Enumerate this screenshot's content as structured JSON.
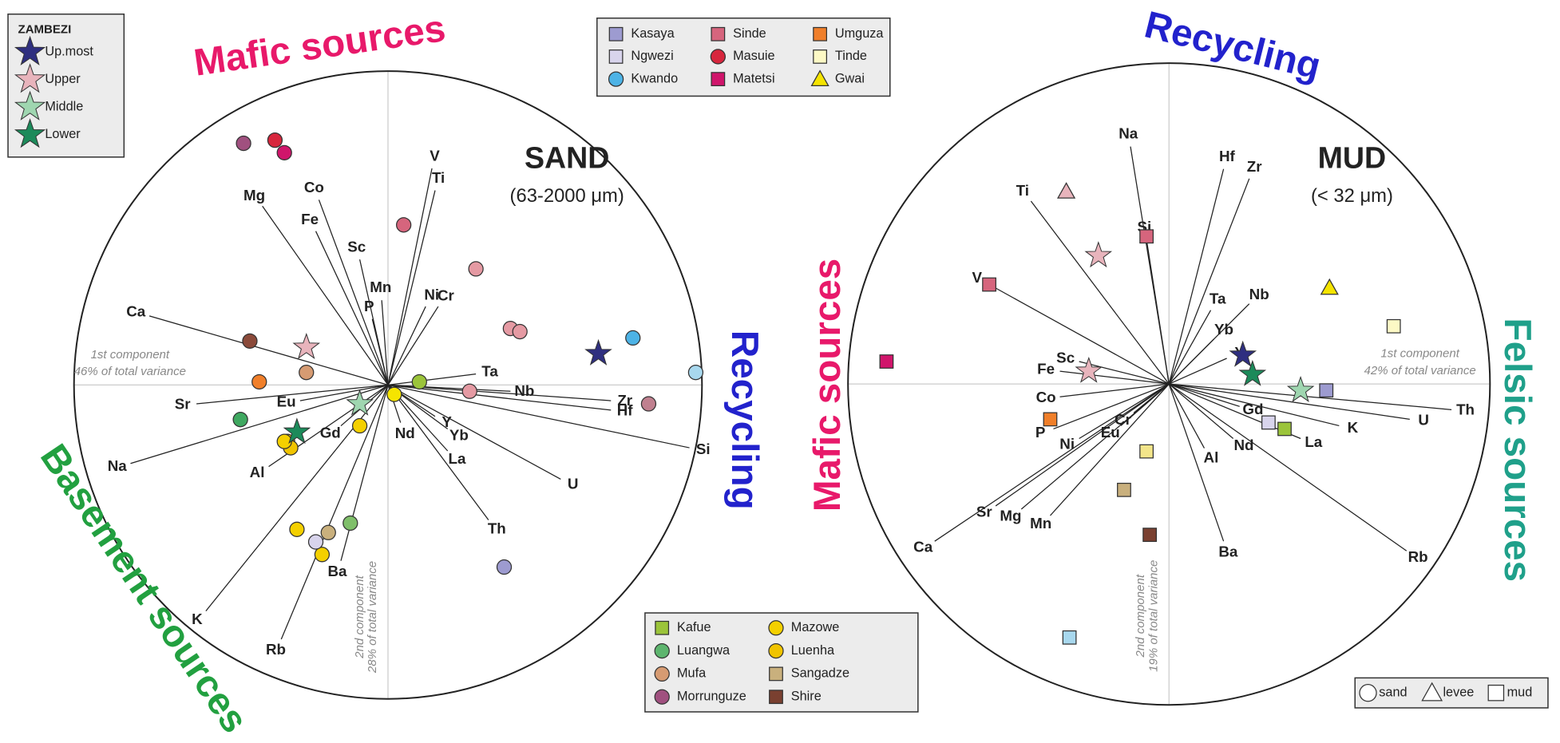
{
  "legends": {
    "zambezi": {
      "title": "ZAMBEZI",
      "items": [
        {
          "label": "Up.most",
          "color": "#2f2f80",
          "shape": "star"
        },
        {
          "label": "Upper",
          "color": "#e8b4bc",
          "shape": "star"
        },
        {
          "label": "Middle",
          "color": "#9fd6b0",
          "shape": "star"
        },
        {
          "label": "Lower",
          "color": "#1c8a5a",
          "shape": "star"
        }
      ]
    },
    "sources": {
      "items": [
        {
          "label": "Kasaya",
          "color": "#9d9bd0",
          "shape": "square"
        },
        {
          "label": "Ngwezi",
          "color": "#d8d4ec",
          "shape": "square"
        },
        {
          "label": "Kwando",
          "color": "#4db3e6",
          "shape": "circle"
        },
        {
          "label": "Sinde",
          "color": "#d6657d",
          "shape": "square"
        },
        {
          "label": "Masuie",
          "color": "#d7263d",
          "shape": "circle"
        },
        {
          "label": "Matetsi",
          "color": "#d0156b",
          "shape": "square"
        },
        {
          "label": "Umguza",
          "color": "#f07f2a",
          "shape": "square"
        },
        {
          "label": "Tinde",
          "color": "#fdf9c5",
          "shape": "square"
        },
        {
          "label": "Gwai",
          "color": "#f5e400",
          "shape": "triangle"
        }
      ]
    },
    "tributaries": {
      "items": [
        {
          "label": "Kafue",
          "color": "#9bc43a",
          "shape": "square"
        },
        {
          "label": "Luangwa",
          "color": "#5db56e",
          "shape": "circle"
        },
        {
          "label": "Mufa",
          "color": "#d69b72",
          "shape": "circle"
        },
        {
          "label": "Morrunguze",
          "color": "#a0507f",
          "shape": "circle"
        },
        {
          "label": "Mazowe",
          "color": "#f4d000",
          "shape": "circle"
        },
        {
          "label": "Luenha",
          "color": "#f0c400",
          "shape": "circle"
        },
        {
          "label": "Sangadze",
          "color": "#c9b07d",
          "shape": "square"
        },
        {
          "label": "Shire",
          "color": "#7a4030",
          "shape": "square"
        }
      ]
    },
    "shapes": {
      "items": [
        {
          "label": "sand",
          "shape": "circle"
        },
        {
          "label": "levee",
          "shape": "triangle"
        },
        {
          "label": "mud",
          "shape": "square"
        }
      ]
    }
  },
  "chart_data": [
    {
      "type": "biplot",
      "title": "SAND",
      "subtitle": "(63-2000 μm)",
      "x_label": [
        "1st component",
        "46% of total variance"
      ],
      "y_label": [
        "2nd component",
        "28% of total variance"
      ],
      "xlim": [
        -1,
        1
      ],
      "ylim": [
        -1,
        1
      ],
      "annotations": [
        {
          "text": "Mafic sources",
          "color": "#e8196a"
        },
        {
          "text": "Recycling",
          "color": "#2222cc"
        },
        {
          "text": "Basement sources",
          "color": "#22a040"
        }
      ],
      "loadings": {
        "names": [
          "V",
          "Ti",
          "Mg",
          "Co",
          "Fe",
          "Sc",
          "Mn",
          "P",
          "Ni",
          "Cr",
          "Ca",
          "Ta",
          "Sr",
          "Eu",
          "Gd",
          "Na",
          "Al",
          "K",
          "Rb",
          "Ba",
          "Nd",
          "Y",
          "Yb",
          "La",
          "Th",
          "U",
          "Si",
          "Hf",
          "Zr",
          "Nb"
        ],
        "x": [
          0.14,
          0.15,
          -0.4,
          -0.22,
          -0.23,
          -0.09,
          -0.02,
          -0.05,
          0.12,
          0.16,
          -0.76,
          0.28,
          -0.61,
          -0.28,
          -0.15,
          -0.82,
          -0.38,
          -0.58,
          -0.34,
          -0.15,
          0.04,
          0.15,
          0.19,
          0.19,
          0.32,
          0.55,
          0.96,
          0.71,
          0.71,
          0.39
        ],
        "y": [
          0.69,
          0.62,
          0.57,
          0.59,
          0.49,
          0.4,
          0.27,
          0.21,
          0.25,
          0.25,
          0.22,
          0.035,
          -0.06,
          -0.05,
          -0.13,
          -0.25,
          -0.26,
          -0.72,
          -0.81,
          -0.56,
          -0.12,
          -0.1,
          -0.14,
          -0.21,
          -0.43,
          -0.3,
          -0.2,
          -0.08,
          -0.05,
          -0.02
        ]
      },
      "samples": {
        "x": [
          -0.46,
          -0.36,
          -0.33,
          0.05,
          0.28,
          0.39,
          0.42,
          0.26,
          0.83,
          0.37,
          0.78,
          0.98,
          0.67,
          0.1,
          0.02,
          -0.09,
          -0.26,
          -0.44,
          -0.41,
          -0.26,
          -0.47,
          -0.32,
          -0.31,
          -0.33,
          -0.29,
          -0.09,
          -0.29,
          -0.21,
          -0.19,
          -0.23,
          -0.12
        ],
        "y": [
          0.77,
          0.78,
          0.74,
          0.51,
          0.37,
          0.18,
          0.17,
          -0.02,
          -0.06,
          -0.58,
          0.15,
          0.04,
          0.1,
          0.01,
          -0.03,
          -0.06,
          0.12,
          0.14,
          0.01,
          0.04,
          -0.11,
          -0.18,
          -0.2,
          -0.18,
          -0.15,
          -0.13,
          -0.46,
          -0.54,
          -0.47,
          -0.5,
          -0.44
        ],
        "colors": [
          "#a0507f",
          "#d7263d",
          "#d0156b",
          "#d6657d",
          "#e59aa3",
          "#e59aa3",
          "#e59aa3",
          "#e59aa3",
          "#c0808f",
          "#9d9bd0",
          "#4db3e6",
          "#a8d8ee",
          "#2f2f80",
          "#9bc43a",
          "#f5e400",
          "#9fd6b0",
          "#e8b4bc",
          "#8b4a3a",
          "#f07f2a",
          "#d69b72",
          "#3fa860",
          "#f4d000",
          "#f0c400",
          "#f4d000",
          "#1c8a5a",
          "#f4d000",
          "#f4d000",
          "#f4d000",
          "#c9b07d",
          "#d8d4ec",
          "#7fbf6a"
        ],
        "shapes": [
          "circle",
          "circle",
          "circle",
          "circle",
          "circle",
          "circle",
          "circle",
          "circle",
          "circle",
          "circle",
          "circle",
          "circle",
          "star",
          "circle",
          "circle",
          "star",
          "star",
          "circle",
          "circle",
          "circle",
          "circle",
          "circle",
          "circle",
          "circle",
          "star",
          "circle",
          "circle",
          "circle",
          "circle",
          "circle",
          "circle"
        ]
      }
    },
    {
      "type": "biplot",
      "title": "MUD",
      "subtitle": "(< 32 μm)",
      "x_label": [
        "1st component",
        "42% of total variance"
      ],
      "y_label": [
        "2nd component",
        "19% of total variance"
      ],
      "xlim": [
        -1,
        1
      ],
      "ylim": [
        -1,
        1
      ],
      "annotations": [
        {
          "text": "Recycling",
          "color": "#2222cc"
        },
        {
          "text": "Mafic sources",
          "color": "#e8196a"
        },
        {
          "text": "Felsic sources",
          "color": "#1fa08a"
        }
      ],
      "loadings": {
        "names": [
          "Na",
          "Hf",
          "Zr",
          "Ti",
          "Si",
          "V",
          "Ta",
          "Nb",
          "Yb",
          "Y",
          "Sc",
          "Fe",
          "Co",
          "P",
          "Ni",
          "Eu",
          "Cr",
          "Ca",
          "Sr",
          "Mg",
          "Mn",
          "Al",
          "Nd",
          "Gd",
          "La",
          "K",
          "U",
          "Th",
          "Ba",
          "Rb"
        ],
        "x": [
          -0.12,
          0.17,
          0.25,
          -0.43,
          -0.07,
          -0.56,
          0.13,
          0.25,
          0.14,
          0.18,
          -0.28,
          -0.34,
          -0.34,
          -0.36,
          -0.28,
          -0.15,
          -0.11,
          -0.73,
          -0.54,
          -0.46,
          -0.37,
          0.11,
          0.2,
          0.22,
          0.41,
          0.53,
          0.75,
          0.88,
          0.17,
          0.74
        ],
        "y": [
          0.74,
          0.67,
          0.64,
          0.57,
          0.45,
          0.31,
          0.23,
          0.25,
          0.14,
          0.08,
          0.07,
          0.04,
          -0.04,
          -0.14,
          -0.17,
          -0.13,
          -0.09,
          -0.49,
          -0.38,
          -0.39,
          -0.41,
          -0.2,
          -0.17,
          -0.07,
          -0.17,
          -0.13,
          -0.11,
          -0.08,
          -0.49,
          -0.52
        ]
      },
      "samples": {
        "x": [
          -0.32,
          -0.07,
          -0.22,
          -0.56,
          -0.88,
          0.5,
          0.7,
          0.23,
          0.26,
          -0.25,
          0.41,
          0.49,
          -0.37,
          0.31,
          0.36,
          -0.07,
          -0.14,
          -0.06,
          -0.31
        ],
        "y": [
          0.6,
          0.46,
          0.4,
          0.31,
          0.07,
          0.3,
          0.18,
          0.09,
          0.03,
          0.04,
          -0.02,
          -0.02,
          -0.11,
          -0.12,
          -0.14,
          -0.21,
          -0.33,
          -0.47,
          -0.79
        ],
        "colors": [
          "#e8b4bc",
          "#d6657d",
          "#e8b4bc",
          "#d6657d",
          "#d0156b",
          "#f5e400",
          "#fdf9c5",
          "#2f2f80",
          "#1c8a5a",
          "#e8b4bc",
          "#9fd6b0",
          "#9d9bd0",
          "#f07f2a",
          "#d8d4ec",
          "#9bc43a",
          "#f3e58a",
          "#c9b07d",
          "#7a4030",
          "#a8d8ee"
        ],
        "shapes": [
          "triangle",
          "square",
          "star",
          "square",
          "square",
          "triangle",
          "square",
          "star",
          "star",
          "star",
          "star",
          "square",
          "square",
          "square",
          "square",
          "square",
          "square",
          "square",
          "square"
        ]
      }
    }
  ]
}
